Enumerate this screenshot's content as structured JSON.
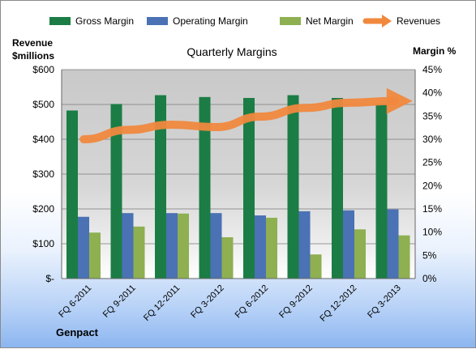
{
  "chart_data": {
    "type": "bar",
    "title": "Quarterly Margins",
    "y_left_label_lines": [
      "Revenue",
      "$millions"
    ],
    "y_right_label": "Margin %",
    "source_label": "Genpact",
    "categories": [
      "FQ 6-2011",
      "FQ 9-2011",
      "FQ 12-2011",
      "FQ 3-2012",
      "FQ 6-2012",
      "FQ 9-2012",
      "FQ 12-2012",
      "FQ 3-2013"
    ],
    "y_left": {
      "min": 0,
      "max": 600,
      "step": 100,
      "tick_labels": [
        "$-",
        "$100",
        "$200",
        "$300",
        "$400",
        "$500",
        "$600"
      ]
    },
    "y_right": {
      "min": 0,
      "max": 45,
      "step": 5,
      "tick_labels": [
        "0%",
        "5%",
        "10%",
        "15%",
        "20%",
        "25%",
        "30%",
        "35%",
        "40%",
        "45%"
      ]
    },
    "series": [
      {
        "name": "Gross Margin",
        "axis": "right",
        "kind": "bar",
        "color": "#1b7d45",
        "values": [
          36.2,
          37.6,
          39.5,
          39.1,
          38.9,
          39.5,
          38.9,
          37.6
        ]
      },
      {
        "name": "Operating Margin",
        "axis": "right",
        "kind": "bar",
        "color": "#4a72b4",
        "values": [
          13.3,
          14.1,
          14.1,
          14.1,
          13.6,
          14.5,
          14.7,
          14.9
        ]
      },
      {
        "name": "Net Margin",
        "axis": "right",
        "kind": "bar",
        "color": "#8eb051",
        "values": [
          9.9,
          11.2,
          14.0,
          8.9,
          13.1,
          5.2,
          10.6,
          9.3
        ]
      },
      {
        "name": "Revenues",
        "axis": "left",
        "kind": "line-arrow",
        "color": "#f0883e",
        "values": [
          400,
          427,
          442,
          435,
          465,
          490,
          505,
          510
        ]
      }
    ],
    "grid": true,
    "legend_position": "top"
  }
}
